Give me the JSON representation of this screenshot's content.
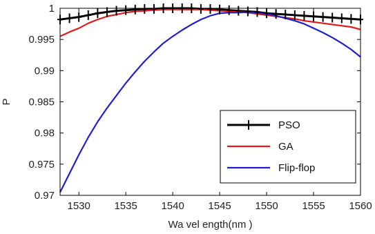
{
  "chart_data": {
    "type": "line",
    "xlabel": "Wa vel ength(nm )",
    "ylabel": "P",
    "xlim": [
      1528,
      1560
    ],
    "ylim": [
      0.97,
      1.0
    ],
    "x_ticks": [
      1530,
      1535,
      1540,
      1545,
      1550,
      1555,
      1560
    ],
    "y_ticks": [
      0.97,
      0.975,
      0.98,
      0.985,
      0.99,
      0.995,
      1.0
    ],
    "x_tick_labels": [
      "1530",
      "1535",
      "1540",
      "1545",
      "1550",
      "1555",
      "1560"
    ],
    "y_tick_labels": [
      "0.97",
      "0.975",
      "0.98",
      "0.985",
      "0.99",
      "0.995",
      "1"
    ],
    "legend_position": "lower-right",
    "series": [
      {
        "name": "PSO",
        "color": "#000000",
        "marker": "plus",
        "x": [
          1528,
          1529,
          1530,
          1531,
          1532,
          1533,
          1534,
          1535,
          1536,
          1537,
          1538,
          1539,
          1540,
          1541,
          1542,
          1543,
          1544,
          1545,
          1546,
          1547,
          1548,
          1549,
          1550,
          1551,
          1552,
          1553,
          1554,
          1555,
          1556,
          1557,
          1558,
          1559,
          1560
        ],
        "y": [
          0.9982,
          0.9984,
          0.9986,
          0.9989,
          0.9992,
          0.9994,
          0.9996,
          0.9997,
          0.9998,
          0.9999,
          0.9999,
          1.0,
          1.0,
          1.0,
          1.0,
          0.9999,
          0.9999,
          0.9998,
          0.9997,
          0.9996,
          0.9995,
          0.9994,
          0.9992,
          0.9991,
          0.999,
          0.9989,
          0.9988,
          0.9987,
          0.9986,
          0.9985,
          0.9984,
          0.9983,
          0.9982
        ]
      },
      {
        "name": "GA",
        "color": "#e41a1a",
        "marker": "none",
        "x": [
          1528,
          1529,
          1530,
          1531,
          1532,
          1533,
          1534,
          1535,
          1536,
          1537,
          1538,
          1539,
          1540,
          1541,
          1542,
          1543,
          1544,
          1545,
          1546,
          1547,
          1548,
          1549,
          1550,
          1551,
          1552,
          1553,
          1554,
          1555,
          1556,
          1557,
          1558,
          1559,
          1560
        ],
        "y": [
          0.9955,
          0.9962,
          0.9968,
          0.9976,
          0.9982,
          0.9987,
          0.999,
          0.9993,
          0.9995,
          0.9996,
          0.9997,
          0.9998,
          0.9998,
          0.9998,
          0.9998,
          0.9998,
          0.9997,
          0.9996,
          0.9995,
          0.9994,
          0.9993,
          0.9991,
          0.9989,
          0.9987,
          0.9985,
          0.9983,
          0.998,
          0.9978,
          0.9976,
          0.9974,
          0.9972,
          0.997,
          0.9966
        ]
      },
      {
        "name": "Flip-flop",
        "color": "#1f1fd0",
        "marker": "none",
        "x": [
          1528,
          1529,
          1530,
          1531,
          1532,
          1533,
          1534,
          1535,
          1536,
          1537,
          1538,
          1539,
          1540,
          1541,
          1542,
          1543,
          1544,
          1545,
          1546,
          1547,
          1548,
          1549,
          1550,
          1551,
          1552,
          1553,
          1554,
          1555,
          1556,
          1557,
          1558,
          1559,
          1560
        ],
        "y": [
          0.9705,
          0.9735,
          0.9765,
          0.9793,
          0.9818,
          0.984,
          0.986,
          0.988,
          0.9898,
          0.9915,
          0.993,
          0.9944,
          0.9955,
          0.9965,
          0.9974,
          0.9982,
          0.9988,
          0.9992,
          0.9993,
          0.9993,
          0.9994,
          0.9993,
          0.9991,
          0.9988,
          0.9984,
          0.998,
          0.9975,
          0.9968,
          0.9961,
          0.9953,
          0.9944,
          0.9934,
          0.9922
        ]
      }
    ]
  }
}
